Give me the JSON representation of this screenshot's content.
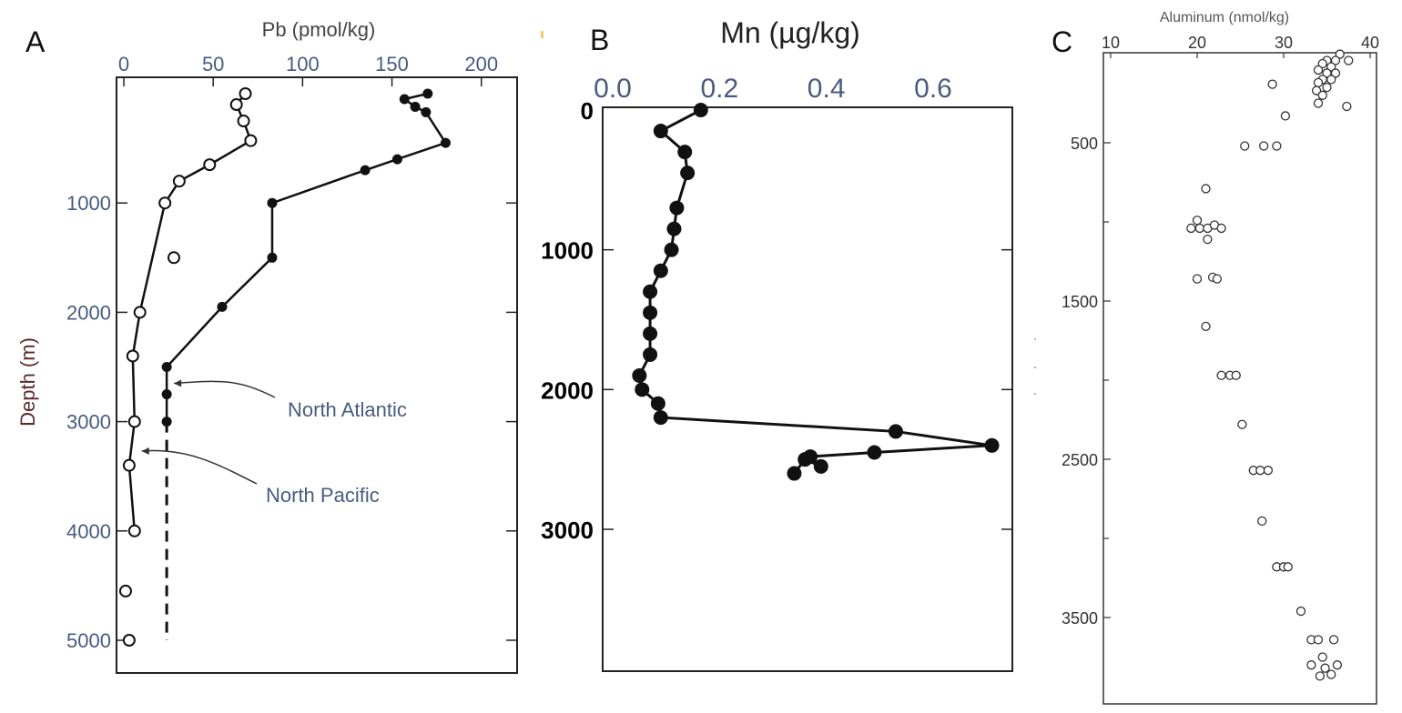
{
  "chart_data": [
    {
      "panel": "A",
      "type": "line",
      "xlabel": "Pb (pmol/kg)",
      "ylabel": "Depth (m)",
      "xlim": [
        0,
        220
      ],
      "ylim": [
        5200,
        -150
      ],
      "xticks": [
        0,
        50,
        100,
        150,
        200
      ],
      "yticks": [
        1000,
        2000,
        3000,
        4000,
        5000
      ],
      "series": [
        {
          "name": "North Atlantic",
          "marker": "filled",
          "x": [
            170,
            157,
            163,
            169,
            180,
            153,
            135,
            83,
            83,
            83,
            55,
            24,
            24,
            24
          ],
          "y": [
            0,
            50,
            120,
            170,
            450,
            600,
            700,
            1000,
            1250,
            1500,
            1950,
            2500,
            2750,
            3000
          ],
          "extension": {
            "style": "dashed",
            "x": [
              24,
              24
            ],
            "y": [
              3000,
              5000
            ]
          }
        },
        {
          "name": "North Pacific",
          "marker": "open",
          "x": [
            68,
            63,
            67,
            71,
            48,
            31,
            23,
            28,
            9,
            5,
            6,
            3,
            6,
            1,
            3
          ],
          "y": [
            0,
            100,
            250,
            430,
            650,
            800,
            1000,
            1500,
            2000,
            2400,
            3000,
            3400,
            4000,
            4550,
            5000
          ],
          "connected_until_index": 12
        }
      ],
      "annotations": [
        {
          "text": "North Atlantic",
          "points_to": [
            24,
            2650
          ]
        },
        {
          "text": "North Pacific",
          "points_to": [
            6,
            3270
          ]
        }
      ]
    },
    {
      "panel": "B",
      "type": "line",
      "xlabel": "Mn (µg/kg)",
      "xlim": [
        -0.03,
        0.73
      ],
      "ylim": [
        3900,
        -10
      ],
      "xticks": [
        0.0,
        0.2,
        0.4,
        0.6
      ],
      "xtick_labels": [
        "0.0",
        "0.2",
        "0.4",
        "0.6"
      ],
      "yticks": [
        0,
        1000,
        2000,
        3000
      ],
      "series": [
        {
          "marker": "filled",
          "x": [
            0.165,
            0.09,
            0.135,
            0.14,
            0.12,
            0.115,
            0.11,
            0.09,
            0.07,
            0.07,
            0.07,
            0.07,
            0.05,
            0.055,
            0.085,
            0.09,
            0.53,
            0.71,
            0.49,
            0.37,
            0.39,
            0.36,
            0.34
          ],
          "y": [
            0,
            150,
            300,
            450,
            700,
            850,
            1000,
            1150,
            1300,
            1450,
            1600,
            1750,
            1900,
            2000,
            2100,
            2200,
            2300,
            2400,
            2450,
            2480,
            2550,
            2500,
            2600
          ]
        }
      ]
    },
    {
      "panel": "C",
      "type": "scatter",
      "xlabel": "Aluminum (nmol/kg)",
      "xlim": [
        10,
        40
      ],
      "ylim": [
        3880,
        -50
      ],
      "xticks": [
        10,
        20,
        30,
        40
      ],
      "yticks": [
        500,
        1500,
        2500,
        3500
      ],
      "series": [
        {
          "marker": "open",
          "x": [
            36.5,
            35,
            36,
            37.5,
            34.5,
            35.5,
            34,
            35,
            36,
            34.5,
            35.5,
            34,
            35,
            33.8,
            34.5,
            34,
            28.7,
            37.3,
            30.2,
            25.5,
            27.7,
            29.2,
            21,
            20,
            19.3,
            20.3,
            21.2,
            22,
            22.8,
            21.2,
            20,
            21.8,
            22.3,
            21,
            22.8,
            23.8,
            24.5,
            25.2,
            26.5,
            27.3,
            28.2,
            27.5,
            29.2,
            30,
            30.5,
            32,
            33.2,
            34,
            35.8,
            34.5,
            33.2,
            34.8,
            36.2,
            35.5,
            34.2
          ],
          "y": [
            -60,
            -20,
            -20,
            -20,
            0,
            20,
            40,
            60,
            60,
            100,
            100,
            120,
            150,
            170,
            200,
            250,
            130,
            270,
            330,
            520,
            520,
            520,
            790,
            990,
            1040,
            1040,
            1040,
            1020,
            1040,
            1110,
            1360,
            1350,
            1360,
            1660,
            1970,
            1970,
            1970,
            2280,
            2570,
            2570,
            2570,
            2890,
            3180,
            3180,
            3180,
            3460,
            3640,
            3640,
            3640,
            3750,
            3800,
            3820,
            3800,
            3860,
            3870
          ]
        }
      ]
    }
  ]
}
